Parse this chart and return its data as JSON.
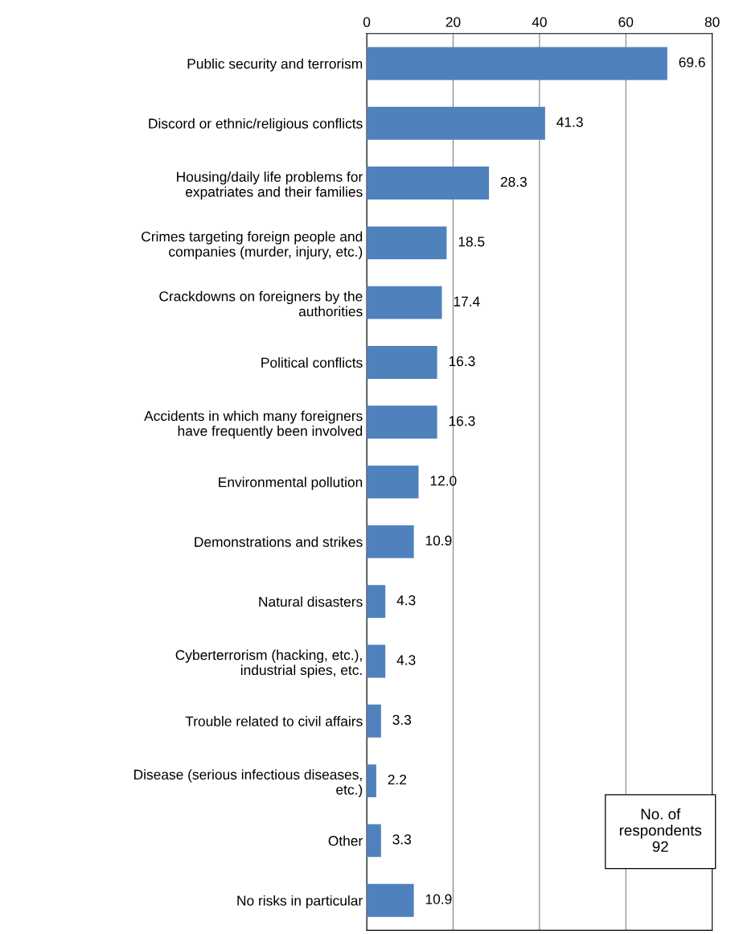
{
  "chart_data": {
    "type": "bar",
    "orientation": "horizontal",
    "categories": [
      "Public security and terrorism",
      "Discord or ethnic/religious conflicts",
      "Housing/daily life problems for\nexpatriates and their families",
      "Crimes targeting foreign people and\ncompanies (murder, injury, etc.)",
      "Crackdowns on foreigners by the\nauthorities",
      "Political conflicts",
      "Accidents in which many foreigners\nhave frequently been involved",
      "Environmental pollution",
      "Demonstrations and strikes",
      "Natural disasters",
      "Cyberterrorism (hacking, etc.),\nindustrial spies, etc.",
      "Trouble related to civil affairs",
      "Disease (serious infectious diseases,\netc.)",
      "Other",
      "No risks in particular"
    ],
    "values": [
      69.6,
      41.3,
      28.3,
      18.5,
      17.4,
      16.3,
      16.3,
      12.0,
      10.9,
      4.3,
      4.3,
      3.3,
      2.2,
      3.3,
      10.9
    ],
    "value_labels": [
      "69.6",
      "41.3",
      "28.3",
      "18.5",
      "17.4",
      "16.3",
      "16.3",
      "12.0",
      "10.9",
      "4.3",
      "4.3",
      "3.3",
      "2.2",
      "3.3",
      "10.9"
    ],
    "color": "#4f81bd",
    "xlim": [
      0,
      80
    ],
    "xticks": [
      0,
      20,
      40,
      60,
      80
    ],
    "grid": "x",
    "annotations": [
      "No. of\nrespondents\n92"
    ]
  }
}
